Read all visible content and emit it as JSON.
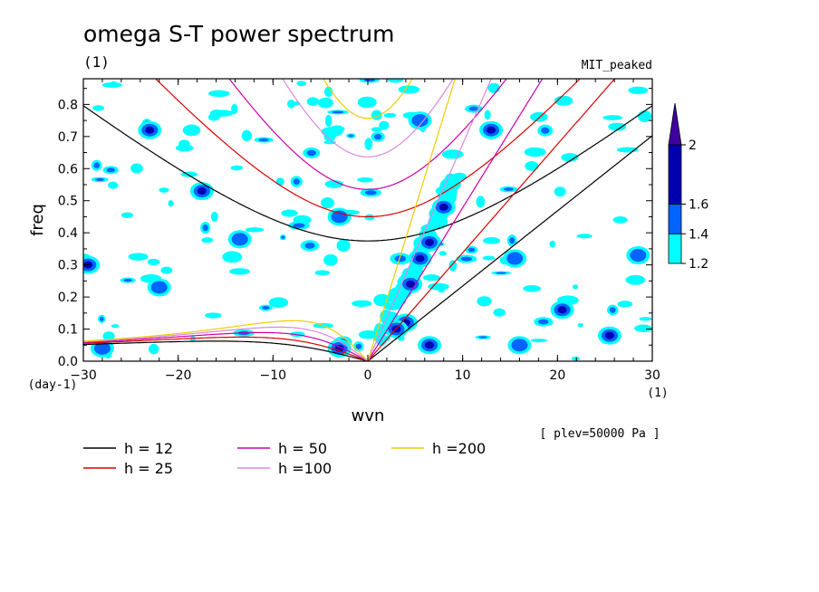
{
  "chart_data": {
    "type": "heatmap",
    "title": "omega S-T power spectrum",
    "title_unit": "(1)",
    "model_label": "MIT_peaked",
    "level_label": "[ plev=50000 Pa ]",
    "xlabel": "wvn",
    "x_unit": "(1)",
    "ylabel": "freq",
    "y_unit": "(day-1)",
    "xlim": [
      -30,
      30
    ],
    "ylim": [
      0,
      0.88
    ],
    "xticks": [
      -30,
      -20,
      -10,
      0,
      10,
      20,
      30
    ],
    "yticks": [
      0.0,
      0.1,
      0.2,
      0.3,
      0.4,
      0.5,
      0.6,
      0.7,
      0.8
    ],
    "xtick_labels": [
      "−30",
      "−20",
      "−10",
      "0",
      "10",
      "20",
      "30"
    ],
    "ytick_labels": [
      "0.0",
      "0.1",
      "0.2",
      "0.3",
      "0.4",
      "0.5",
      "0.6",
      "0.7",
      "0.8"
    ],
    "colorbar": {
      "levels": [
        1.2,
        1.4,
        1.6,
        2.0
      ],
      "labels": [
        "1.2",
        "1.4",
        "1.6",
        "2"
      ],
      "colors": [
        "#00ffff",
        "#0064ff",
        "#0000b0",
        "#4000a0"
      ]
    },
    "dispersion_curves": [
      {
        "name": "h = 12",
        "h": 12,
        "color": "#000000"
      },
      {
        "name": "h = 25",
        "h": 25,
        "color": "#dd0000"
      },
      {
        "name": "h = 50",
        "h": 50,
        "color": "#cc00aa"
      },
      {
        "name": "h =100",
        "h": 100,
        "color": "#dd88dd"
      },
      {
        "name": "h =200",
        "h": 200,
        "color": "#eecc00"
      }
    ],
    "spectral_peaks": [
      {
        "x": 5.5,
        "y": 0.32,
        "level": 1.6
      },
      {
        "x": 6.5,
        "y": 0.37,
        "level": 1.6
      },
      {
        "x": 4.0,
        "y": 0.12,
        "level": 1.6
      },
      {
        "x": 6.5,
        "y": 0.05,
        "level": 1.6
      },
      {
        "x": 3.0,
        "y": 0.1,
        "level": 1.6
      },
      {
        "x": 4.5,
        "y": 0.24,
        "level": 1.6
      },
      {
        "x": -3.0,
        "y": 0.04,
        "level": 1.6
      },
      {
        "x": 8.0,
        "y": 0.48,
        "level": 1.6
      },
      {
        "x": -23.0,
        "y": 0.72,
        "level": 1.6
      },
      {
        "x": -17.5,
        "y": 0.53,
        "level": 1.6
      },
      {
        "x": -29.5,
        "y": 0.3,
        "level": 1.6
      },
      {
        "x": 13.0,
        "y": 0.72,
        "level": 1.6
      },
      {
        "x": 20.5,
        "y": 0.16,
        "level": 1.6
      },
      {
        "x": 25.5,
        "y": 0.08,
        "level": 1.6
      },
      {
        "x": 15.5,
        "y": 0.32,
        "level": 1.4
      },
      {
        "x": -13.5,
        "y": 0.38,
        "level": 1.4
      },
      {
        "x": -22.0,
        "y": 0.23,
        "level": 1.4
      },
      {
        "x": -28.0,
        "y": 0.04,
        "level": 1.4
      },
      {
        "x": -3.0,
        "y": 0.45,
        "level": 1.4
      },
      {
        "x": 5.5,
        "y": 0.75,
        "level": 1.4
      },
      {
        "x": 28.5,
        "y": 0.33,
        "level": 1.4
      },
      {
        "x": 16.0,
        "y": 0.05,
        "level": 1.4
      }
    ]
  },
  "legend": {
    "items": [
      {
        "label": "h = 12",
        "color": "#000000"
      },
      {
        "label": "h = 25",
        "color": "#dd0000"
      },
      {
        "label": "h = 50",
        "color": "#cc00aa"
      },
      {
        "label": "h =100",
        "color": "#dd88dd"
      },
      {
        "label": "h =200",
        "color": "#eecc00"
      }
    ]
  }
}
